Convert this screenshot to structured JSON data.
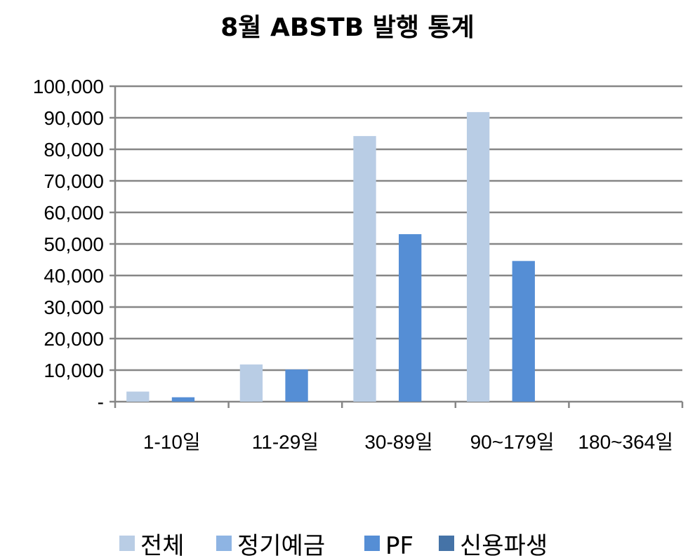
{
  "chart_data": {
    "type": "bar",
    "title": "8월 ABSTB 발행 통계",
    "xlabel": "",
    "ylabel": "",
    "categories": [
      "1-10일",
      "11-29일",
      "30-89일",
      "90~179일",
      "180~364일"
    ],
    "series": [
      {
        "name": "전체",
        "color": "#B9CDE5",
        "values": [
          3200,
          11800,
          84200,
          91800,
          0
        ]
      },
      {
        "name": "정기예금",
        "color": "#8EB4E3",
        "values": [
          0,
          0,
          0,
          0,
          0
        ]
      },
      {
        "name": "PF",
        "color": "#558ED5",
        "values": [
          1400,
          10200,
          53100,
          44600,
          0
        ]
      },
      {
        "name": "신용파생",
        "color": "#4573A7",
        "values": [
          0,
          0,
          0,
          0,
          0
        ]
      }
    ],
    "ylim": [
      0,
      100000
    ],
    "yticks": [
      0,
      10000,
      20000,
      30000,
      40000,
      50000,
      60000,
      70000,
      80000,
      90000,
      100000
    ],
    "ytick_labels": [
      "-",
      "10,000",
      "20,000",
      "30,000",
      "40,000",
      "50,000",
      "60,000",
      "70,000",
      "80,000",
      "90,000",
      "100,000"
    ],
    "grid": true,
    "legend_position": "bottom"
  }
}
